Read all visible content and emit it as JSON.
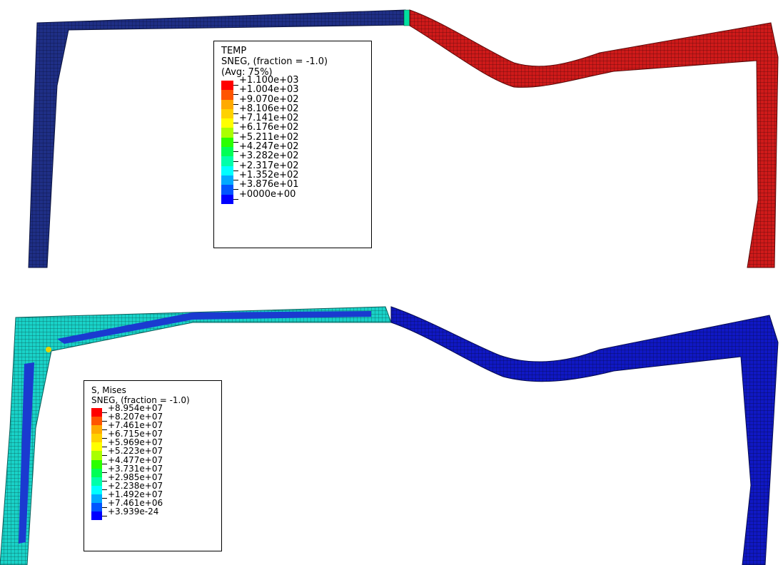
{
  "figures": [
    {
      "id": "top",
      "legend": {
        "title_lines": [
          "TEMP",
          "SNEG, (fraction = -1.0)",
          "(Avg: 75%)"
        ],
        "labels": [
          "+1.100e+03",
          "+1.004e+03",
          "+9.070e+02",
          "+8.106e+02",
          "+7.141e+02",
          "+6.176e+02",
          "+5.211e+02",
          "+4.247e+02",
          "+3.282e+02",
          "+2.317e+02",
          "+1.352e+02",
          "+3.876e+01",
          "+0000e+00"
        ],
        "colors": [
          "#ff0000",
          "#ff5500",
          "#ffaa00",
          "#ffd200",
          "#ffff00",
          "#aaff00",
          "#2bff00",
          "#00ff55",
          "#00ffaa",
          "#00ffff",
          "#00aaff",
          "#0055ff",
          "#0000ff"
        ]
      },
      "regions": [
        {
          "name": "cold-left-frame",
          "color": "#1e2f7a"
        },
        {
          "name": "hot-right-frame",
          "color": "#c1141a"
        }
      ]
    },
    {
      "id": "bottom",
      "legend": {
        "title_lines": [
          "S, Mises",
          "SNEG, (fraction = -1.0)"
        ],
        "labels": [
          "+8.954e+07",
          "+8.207e+07",
          "+7.461e+07",
          "+6.715e+07",
          "+5.969e+07",
          "+5.223e+07",
          "+4.477e+07",
          "+3.731e+07",
          "+2.985e+07",
          "+2.238e+07",
          "+1.492e+07",
          "+7.461e+06",
          "+3.939e-24"
        ],
        "colors": [
          "#ff0000",
          "#ff5500",
          "#ffaa00",
          "#ffd200",
          "#ffff00",
          "#aaff00",
          "#2bff00",
          "#00ff55",
          "#00ffaa",
          "#00ffff",
          "#00aaff",
          "#0055ff",
          "#0000ff"
        ]
      },
      "regions": [
        {
          "name": "stressed-left-frame",
          "color": "#1bd6c4"
        },
        {
          "name": "low-stress-right-frame",
          "color": "#1018c0"
        }
      ]
    }
  ]
}
